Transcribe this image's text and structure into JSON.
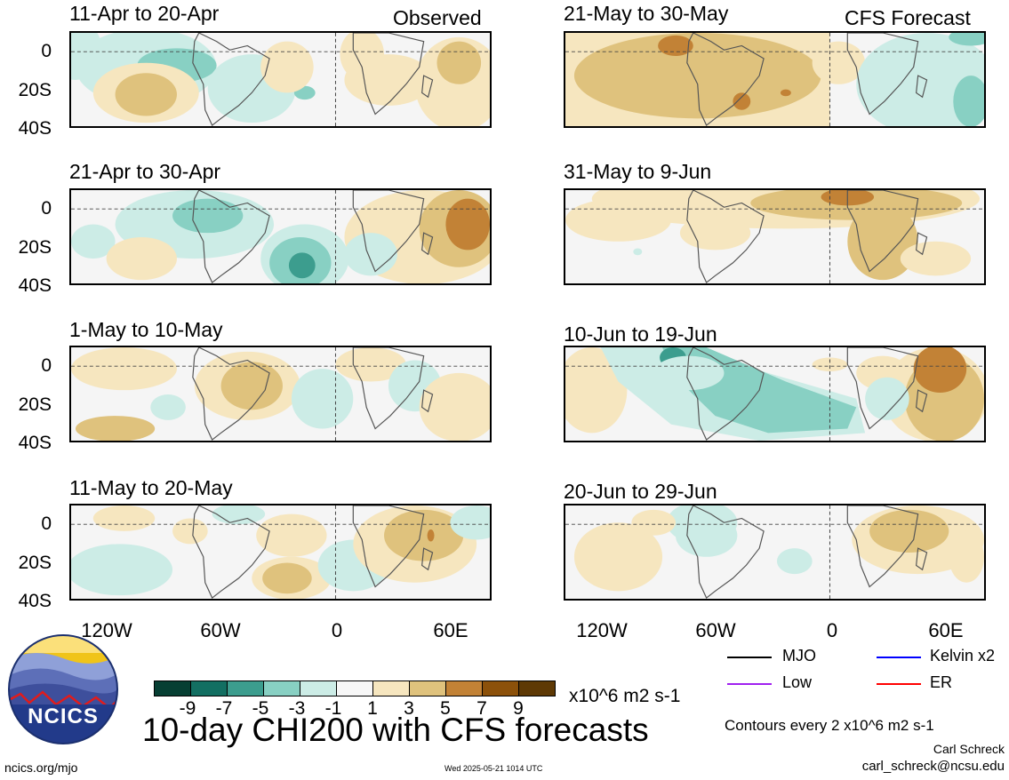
{
  "figure": {
    "title": "10-day CHI200 with CFS forecasts",
    "observed_label": "Observed",
    "forecast_label": "CFS Forecast",
    "units": "x10^6 m2 s-1",
    "contour_note": "Contours every 2 x10^6 m2 s-1",
    "author": "Carl Schreck",
    "email": "carl_schreck@ncsu.edu",
    "website": "ncics.org/mjo",
    "timestamp": "Wed 2025-05-21 1014 UTC",
    "logo_text": "NCICS"
  },
  "panels_left": [
    {
      "title": "11-Apr to 20-Apr"
    },
    {
      "title": "21-Apr to 30-Apr"
    },
    {
      "title": "1-May to 10-May"
    },
    {
      "title": "11-May to 20-May"
    }
  ],
  "panels_right": [
    {
      "title": "21-May to 30-May"
    },
    {
      "title": "31-May to 9-Jun"
    },
    {
      "title": "10-Jun to 19-Jun"
    },
    {
      "title": "20-Jun to 29-Jun"
    }
  ],
  "axes": {
    "y_ticks": [
      "0",
      "20S",
      "40S"
    ],
    "x_ticks": [
      "120W",
      "60W",
      "0",
      "60E"
    ]
  },
  "colorbar": {
    "labels": [
      "-9",
      "-7",
      "-5",
      "-3",
      "-1",
      "1",
      "3",
      "5",
      "7",
      "9"
    ],
    "colors": [
      "#063f33",
      "#136f62",
      "#3c9d8e",
      "#88d0c3",
      "#ccece6",
      "#f7f7f7",
      "#f6e6bf",
      "#dfc27d",
      "#c28236",
      "#8c510a",
      "#5e3905"
    ]
  },
  "legend": [
    {
      "label": "MJO",
      "color": "#000000"
    },
    {
      "label": "Kelvin x2",
      "color": "#0000ff"
    },
    {
      "label": "Low",
      "color": "#a020f0"
    },
    {
      "label": "ER",
      "color": "#ff0000"
    }
  ]
}
